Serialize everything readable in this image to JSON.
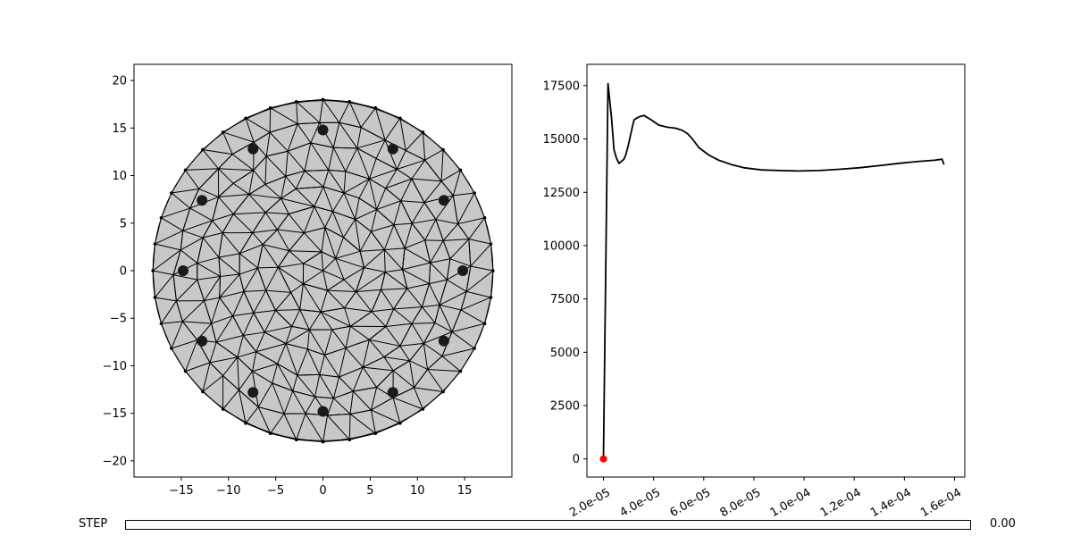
{
  "chart_data": [
    {
      "type": "mesh",
      "xlim": [
        -20,
        20
      ],
      "ylim": [
        -21.7,
        21.7
      ],
      "xticks": [
        "−15",
        "−10",
        "−5",
        "0",
        "5",
        "10",
        "15"
      ],
      "xtick_values": [
        -15,
        -10,
        -5,
        0,
        5,
        10,
        15
      ],
      "yticks": [
        "20",
        "15",
        "10",
        "5",
        "0",
        "−5",
        "−10",
        "−15",
        "−20"
      ],
      "ytick_values": [
        20,
        15,
        10,
        5,
        0,
        -5,
        -10,
        -15,
        -20
      ],
      "domain_radius": 18,
      "fill_color": "#c8c8c8",
      "electrodes": [
        {
          "x": 0,
          "y": 14.8
        },
        {
          "x": 7.4,
          "y": 12.8
        },
        {
          "x": 12.8,
          "y": 7.4
        },
        {
          "x": 14.8,
          "y": 0
        },
        {
          "x": 12.8,
          "y": -7.4
        },
        {
          "x": 7.4,
          "y": -12.8
        },
        {
          "x": 0,
          "y": -14.8
        },
        {
          "x": -7.4,
          "y": -12.8
        },
        {
          "x": -12.8,
          "y": -7.4
        },
        {
          "x": -14.8,
          "y": 0
        },
        {
          "x": -12.8,
          "y": 7.4
        },
        {
          "x": -7.4,
          "y": 12.8
        }
      ]
    },
    {
      "type": "line",
      "xlim": [
        1.34e-05,
        0.0001641
      ],
      "ylim": [
        -850,
        18500
      ],
      "xticks": [
        "2.0e-05",
        "4.0e-05",
        "6.0e-05",
        "8.0e-05",
        "1.0e-04",
        "1.2e-04",
        "1.4e-04",
        "1.6e-04"
      ],
      "xtick_values": [
        2e-05,
        4e-05,
        6e-05,
        8e-05,
        0.0001,
        0.00012,
        0.00014,
        0.00016
      ],
      "yticks": [
        "0",
        "2500",
        "5000",
        "7500",
        "10000",
        "12500",
        "15000",
        "17500"
      ],
      "ytick_values": [
        0,
        2500,
        5000,
        7500,
        10000,
        12500,
        15000,
        17500
      ],
      "series": [
        {
          "color": "#000000",
          "x": [
            2e-05,
            2.18e-05,
            2.32e-05,
            2.42e-05,
            2.52e-05,
            2.62e-05,
            2.72e-05,
            2.82e-05,
            2.9e-05,
            3e-05,
            3.1e-05,
            3.22e-05,
            3.36e-05,
            3.45e-05,
            3.62e-05,
            3.9e-05,
            4.2e-05,
            4.55e-05,
            4.9e-05,
            5.15e-05,
            5.35e-05,
            5.55e-05,
            5.8e-05,
            6.2e-05,
            6.6e-05,
            7.1e-05,
            7.6e-05,
            8.3e-05,
            9e-05,
            9.8e-05,
            0.000106,
            0.000114,
            0.000122,
            0.00013,
            0.000138,
            0.000146,
            0.000152,
            0.000155,
            0.0001558
          ],
          "y": [
            0,
            17600,
            16000,
            14500,
            14100,
            13850,
            13950,
            14050,
            14300,
            14750,
            15300,
            15900,
            16000,
            16050,
            16100,
            15900,
            15650,
            15550,
            15500,
            15400,
            15250,
            15000,
            14600,
            14250,
            14000,
            13800,
            13650,
            13550,
            13520,
            13500,
            13520,
            13580,
            13650,
            13750,
            13860,
            13950,
            14000,
            14050,
            13800
          ]
        }
      ],
      "marker": {
        "x": 2e-05,
        "y": 0,
        "color": "#ff0000"
      }
    }
  ],
  "slider": {
    "label": "STEP",
    "value_text": "0.00",
    "value": 0
  }
}
